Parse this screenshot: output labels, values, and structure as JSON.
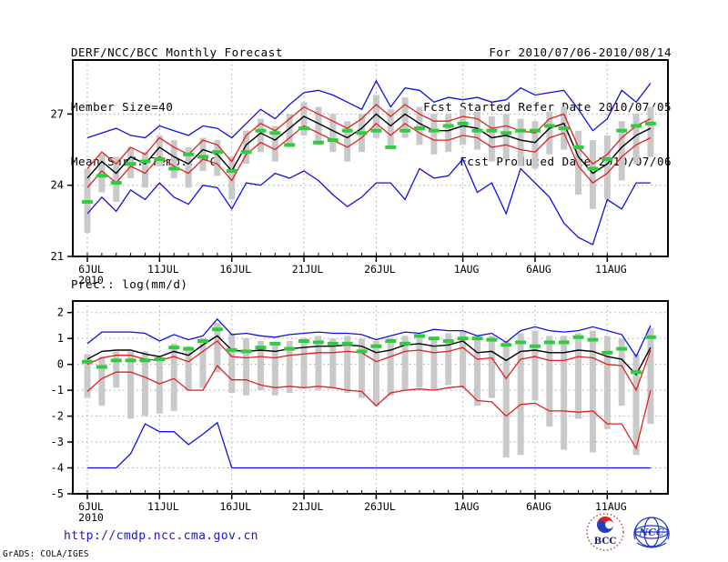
{
  "header": {
    "title": "DERF/NCC/BCC Monthly Forecast",
    "member_size": "Member Size=40",
    "for_range": "For 2010/07/06-2010/08/14",
    "fcst_started": "Fcst Started Refer Date 2010/07/05",
    "fcst_produced": "Fcst Produced Date 2010/07/06"
  },
  "footer": {
    "url": "http://cmdp.ncc.cma.gov.cn",
    "grads_credit": "GrADS: COLA/IGES",
    "logos": [
      {
        "name": "bcc",
        "label": "BCC"
      },
      {
        "name": "ncc",
        "label": "NCC"
      }
    ]
  },
  "colors": {
    "line_blue": "#1010e0",
    "line_red": "#e02020",
    "line_black": "#000000",
    "obs_green": "#30cc40",
    "bar_gray": "#c9c9c9",
    "grid_gray": "#a6a6a6",
    "url_blue": "#1a1ab8"
  },
  "chart_data": [
    {
      "type": "line",
      "title": "Mean Surf. Temp.: °C",
      "n_days": 40,
      "start_date": "6JUL2010",
      "end_date": "14AUG2010",
      "x_tick_labels": [
        "6JUL",
        "11JUL",
        "16JUL",
        "21JUL",
        "26JUL",
        "1AUG",
        "6AUG",
        "11AUG"
      ],
      "x_tick_days": [
        0,
        5,
        10,
        15,
        20,
        26,
        31,
        36
      ],
      "x_year_label": "2010",
      "ylim": [
        21,
        29.3
      ],
      "yticks": [
        21,
        24,
        27
      ],
      "grid": true,
      "series": [
        {
          "name": "blue-max",
          "color": "#1010e0",
          "values": [
            26.0,
            26.2,
            26.4,
            26.1,
            26.0,
            26.5,
            26.3,
            26.1,
            26.5,
            26.4,
            26.0,
            26.6,
            27.2,
            26.8,
            27.4,
            27.9,
            28.0,
            27.8,
            27.5,
            27.2,
            28.4,
            27.3,
            28.1,
            28.0,
            27.5,
            27.7,
            27.6,
            27.7,
            27.5,
            27.6,
            28.1,
            27.8,
            27.9,
            28.0,
            27.2,
            26.3,
            26.8,
            28.0,
            27.5,
            28.3
          ]
        },
        {
          "name": "red-upper",
          "color": "#e02020",
          "values": [
            24.7,
            25.4,
            24.9,
            25.6,
            25.3,
            26.0,
            25.6,
            25.3,
            25.9,
            25.7,
            25.0,
            26.1,
            26.6,
            26.3,
            26.8,
            27.3,
            27.0,
            26.7,
            26.4,
            26.8,
            27.4,
            26.9,
            27.4,
            27.0,
            26.7,
            26.7,
            26.9,
            26.8,
            26.4,
            26.5,
            26.3,
            26.2,
            26.8,
            27.0,
            25.6,
            24.9,
            25.3,
            26.0,
            26.5,
            26.8
          ]
        },
        {
          "name": "black-mean",
          "color": "#000000",
          "values": [
            24.3,
            25.0,
            24.5,
            25.2,
            24.9,
            25.6,
            25.2,
            24.9,
            25.5,
            25.3,
            24.6,
            25.7,
            26.2,
            25.9,
            26.4,
            26.9,
            26.6,
            26.3,
            26.0,
            26.4,
            27.0,
            26.5,
            27.0,
            26.6,
            26.3,
            26.3,
            26.5,
            26.4,
            26.0,
            26.1,
            25.9,
            25.8,
            26.4,
            26.6,
            25.2,
            24.5,
            24.9,
            25.6,
            26.1,
            26.4
          ]
        },
        {
          "name": "red-lower",
          "color": "#e02020",
          "values": [
            23.9,
            24.6,
            24.1,
            24.8,
            24.5,
            25.2,
            24.8,
            24.5,
            25.1,
            24.9,
            24.2,
            25.3,
            25.8,
            25.5,
            26.0,
            26.5,
            26.2,
            25.9,
            25.6,
            26.0,
            26.6,
            26.1,
            26.6,
            26.2,
            25.9,
            25.9,
            26.1,
            26.0,
            25.6,
            25.7,
            25.5,
            25.4,
            26.0,
            26.2,
            24.8,
            24.1,
            24.5,
            25.2,
            25.7,
            26.0
          ]
        },
        {
          "name": "blue-min",
          "color": "#1010e0",
          "values": [
            22.8,
            23.5,
            22.9,
            23.8,
            23.4,
            24.1,
            23.5,
            23.2,
            24.0,
            23.9,
            23.0,
            24.1,
            24.0,
            24.5,
            24.3,
            24.6,
            24.2,
            23.6,
            23.1,
            23.5,
            24.1,
            24.1,
            23.4,
            24.7,
            24.3,
            24.4,
            25.1,
            23.7,
            24.1,
            22.8,
            24.7,
            24.1,
            23.5,
            22.4,
            21.8,
            21.5,
            23.4,
            23.0,
            24.1,
            24.1
          ]
        }
      ],
      "dashes": {
        "name": "green-observation",
        "color": "#30cc40",
        "values": [
          23.3,
          24.4,
          24.1,
          24.9,
          25.0,
          25.1,
          24.7,
          25.3,
          25.2,
          25.4,
          24.6,
          25.4,
          26.3,
          26.2,
          25.7,
          26.4,
          25.8,
          25.9,
          26.3,
          26.2,
          26.3,
          25.6,
          26.3,
          26.4,
          26.3,
          26.5,
          26.6,
          26.3,
          26.3,
          26.2,
          26.3,
          26.3,
          26.5,
          26.4,
          25.6,
          24.7,
          25.1,
          26.3,
          26.5,
          26.6
        ]
      },
      "bars": {
        "name": "gray-member-spread",
        "color": "#c9c9c9",
        "ranges": [
          [
            22.0,
            24.7
          ],
          [
            23.7,
            25.3
          ],
          [
            23.3,
            25.2
          ],
          [
            24.3,
            25.6
          ],
          [
            23.9,
            25.4
          ],
          [
            24.8,
            26.1
          ],
          [
            24.3,
            25.9
          ],
          [
            23.9,
            25.6
          ],
          [
            24.6,
            26.0
          ],
          [
            24.4,
            25.9
          ],
          [
            23.4,
            25.2
          ],
          [
            24.9,
            26.3
          ],
          [
            25.4,
            26.8
          ],
          [
            25.0,
            26.5
          ],
          [
            25.6,
            27.0
          ],
          [
            26.1,
            27.5
          ],
          [
            25.7,
            27.3
          ],
          [
            25.4,
            27.0
          ],
          [
            25.0,
            26.7
          ],
          [
            25.4,
            27.0
          ],
          [
            26.0,
            27.8
          ],
          [
            25.6,
            27.2
          ],
          [
            26.0,
            27.7
          ],
          [
            25.7,
            27.3
          ],
          [
            25.3,
            27.0
          ],
          [
            25.4,
            27.0
          ],
          [
            25.7,
            27.2
          ],
          [
            25.5,
            27.1
          ],
          [
            25.0,
            26.9
          ],
          [
            25.1,
            27.0
          ],
          [
            24.8,
            26.8
          ],
          [
            24.7,
            26.7
          ],
          [
            25.3,
            27.1
          ],
          [
            25.5,
            27.3
          ],
          [
            23.6,
            26.3
          ],
          [
            23.0,
            25.9
          ],
          [
            23.4,
            26.1
          ],
          [
            24.2,
            26.7
          ],
          [
            24.9,
            27.0
          ],
          [
            25.2,
            27.3
          ]
        ]
      }
    },
    {
      "type": "line",
      "title": "Prec.: log(mm/d)",
      "n_days": 40,
      "start_date": "6JUL2010",
      "end_date": "14AUG2010",
      "x_tick_labels": [
        "6JUL",
        "11JUL",
        "16JUL",
        "21JUL",
        "26JUL",
        "1AUG",
        "6AUG",
        "11AUG"
      ],
      "x_tick_days": [
        0,
        5,
        10,
        15,
        20,
        26,
        31,
        36
      ],
      "x_year_label": "2010",
      "ylim": [
        -5,
        2.45
      ],
      "yticks": [
        2,
        1,
        0,
        -1,
        -2,
        -3,
        -4,
        -5
      ],
      "grid": true,
      "series": [
        {
          "name": "blue-max",
          "color": "#1010e0",
          "values": [
            0.8,
            1.25,
            1.25,
            1.25,
            1.2,
            0.9,
            1.15,
            0.95,
            1.1,
            1.75,
            1.15,
            1.2,
            1.1,
            1.05,
            1.15,
            1.2,
            1.25,
            1.2,
            1.2,
            1.15,
            0.95,
            1.1,
            1.25,
            1.2,
            1.35,
            1.3,
            1.3,
            1.1,
            1.2,
            0.85,
            1.3,
            1.45,
            1.3,
            1.25,
            1.3,
            1.45,
            1.3,
            1.15,
            0.3,
            1.5
          ]
        },
        {
          "name": "red-upper",
          "color": "#e02020",
          "values": [
            0.0,
            0.25,
            0.35,
            0.35,
            0.2,
            0.15,
            0.3,
            0.1,
            0.5,
            0.9,
            0.3,
            0.25,
            0.3,
            0.25,
            0.35,
            0.4,
            0.45,
            0.45,
            0.5,
            0.45,
            0.1,
            0.3,
            0.5,
            0.55,
            0.45,
            0.5,
            0.65,
            0.2,
            0.25,
            -0.55,
            0.2,
            0.3,
            0.15,
            0.15,
            0.3,
            0.25,
            0.0,
            -0.05,
            -1.0,
            0.55
          ]
        },
        {
          "name": "black-mean",
          "color": "#000000",
          "values": [
            0.2,
            0.5,
            0.55,
            0.55,
            0.4,
            0.3,
            0.5,
            0.35,
            0.75,
            1.1,
            0.55,
            0.5,
            0.55,
            0.5,
            0.6,
            0.65,
            0.7,
            0.7,
            0.75,
            0.7,
            0.45,
            0.55,
            0.75,
            0.8,
            0.7,
            0.75,
            0.9,
            0.45,
            0.5,
            0.15,
            0.5,
            0.55,
            0.45,
            0.45,
            0.55,
            0.5,
            0.3,
            0.2,
            -0.4,
            0.65
          ]
        },
        {
          "name": "red-lower",
          "color": "#e02020",
          "values": [
            -1.05,
            -0.55,
            -0.3,
            -0.3,
            -0.5,
            -0.75,
            -0.55,
            -1.0,
            -1.0,
            -0.05,
            -0.6,
            -0.6,
            -0.8,
            -0.9,
            -0.85,
            -0.9,
            -0.85,
            -0.9,
            -1.0,
            -1.05,
            -1.6,
            -1.1,
            -1.0,
            -0.95,
            -1.0,
            -0.9,
            -0.85,
            -1.4,
            -1.45,
            -2.0,
            -1.55,
            -1.5,
            -1.8,
            -1.8,
            -1.85,
            -1.8,
            -2.3,
            -2.3,
            -3.25,
            -1.0
          ]
        },
        {
          "name": "blue-min",
          "color": "#1010e0",
          "values": [
            -4.0,
            -4.0,
            -4.0,
            -3.45,
            -2.3,
            -2.6,
            -2.6,
            -3.1,
            -2.7,
            -2.25,
            -4.0,
            -4.0,
            -4.0,
            -4.0,
            -4.0,
            -4.0,
            -4.0,
            -4.0,
            -4.0,
            -4.0,
            -4.0,
            -4.0,
            -4.0,
            -4.0,
            -4.0,
            -4.0,
            -4.0,
            -4.0,
            -4.0,
            -4.0,
            -4.0,
            -4.0,
            -4.0,
            -4.0,
            -4.0,
            -4.0,
            -4.0,
            -4.0,
            -4.0,
            -4.0
          ]
        }
      ],
      "dashes": {
        "name": "green-observation",
        "color": "#30cc40",
        "values": [
          0.1,
          -0.1,
          0.15,
          0.15,
          0.15,
          0.2,
          0.65,
          0.6,
          0.9,
          1.35,
          0.55,
          0.5,
          0.65,
          0.8,
          0.6,
          0.9,
          0.85,
          0.8,
          0.8,
          0.5,
          0.7,
          0.9,
          0.8,
          1.1,
          1.0,
          0.9,
          1.0,
          1.0,
          0.95,
          0.75,
          0.85,
          0.7,
          0.85,
          0.85,
          1.05,
          0.95,
          0.45,
          0.6,
          -0.3,
          1.05
        ]
      },
      "bars": {
        "name": "gray-member-spread",
        "color": "#c9c9c9",
        "ranges": [
          [
            -1.3,
            0.4
          ],
          [
            -1.6,
            0.3
          ],
          [
            -0.9,
            0.5
          ],
          [
            -2.1,
            0.5
          ],
          [
            -2.0,
            0.5
          ],
          [
            -1.9,
            0.3
          ],
          [
            -1.8,
            0.8
          ],
          [
            -1.0,
            0.7
          ],
          [
            -0.9,
            1.0
          ],
          [
            -0.3,
            1.6
          ],
          [
            -1.1,
            1.2
          ],
          [
            -1.2,
            1.0
          ],
          [
            -1.0,
            0.9
          ],
          [
            -1.2,
            0.8
          ],
          [
            -1.1,
            0.9
          ],
          [
            -0.9,
            1.0
          ],
          [
            -1.0,
            1.1
          ],
          [
            -0.9,
            1.0
          ],
          [
            -1.1,
            1.1
          ],
          [
            -1.3,
            1.0
          ],
          [
            -1.6,
            0.9
          ],
          [
            -1.2,
            1.0
          ],
          [
            -1.0,
            1.1
          ],
          [
            -0.9,
            1.1
          ],
          [
            -1.0,
            1.0
          ],
          [
            -0.8,
            1.2
          ],
          [
            -0.9,
            1.3
          ],
          [
            -1.6,
            1.1
          ],
          [
            -1.3,
            1.1
          ],
          [
            -3.6,
            0.9
          ],
          [
            -3.5,
            1.2
          ],
          [
            -1.4,
            1.3
          ],
          [
            -2.4,
            1.1
          ],
          [
            -3.3,
            1.1
          ],
          [
            -2.1,
            1.2
          ],
          [
            -3.4,
            1.3
          ],
          [
            -2.5,
            1.1
          ],
          [
            -1.6,
            1.0
          ],
          [
            -3.5,
            0.4
          ],
          [
            -2.3,
            1.4
          ]
        ]
      }
    }
  ]
}
